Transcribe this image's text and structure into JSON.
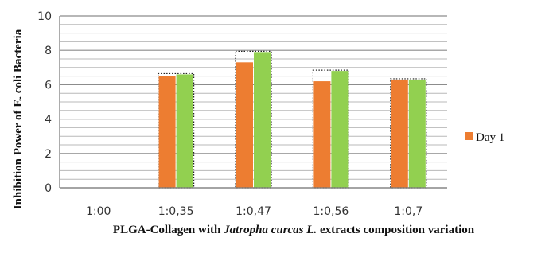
{
  "chart_data": {
    "type": "bar",
    "categories": [
      "1:00",
      "1:0,35",
      "1:0,47",
      "1:0,56",
      "1:0,7"
    ],
    "series": [
      {
        "name": "Day 1",
        "color": "#ED7D31",
        "values": [
          0,
          6.5,
          7.3,
          6.2,
          6.3
        ]
      },
      {
        "name": "",
        "color": "#92D050",
        "values": [
          0,
          6.6,
          7.9,
          6.8,
          6.3
        ]
      }
    ],
    "title": "",
    "xlabel_parts": [
      "PLGA-Collagen with ",
      "Jatropha curcas L.",
      " extracts composition variation"
    ],
    "ylabel": "Inhibition Power of E. coli Bacteria",
    "yticks": [
      "0",
      "2",
      "4",
      "6",
      "8",
      "10"
    ],
    "ylim": [
      0,
      10
    ],
    "grid": true,
    "minor_grid": true,
    "legend_position": "right"
  }
}
